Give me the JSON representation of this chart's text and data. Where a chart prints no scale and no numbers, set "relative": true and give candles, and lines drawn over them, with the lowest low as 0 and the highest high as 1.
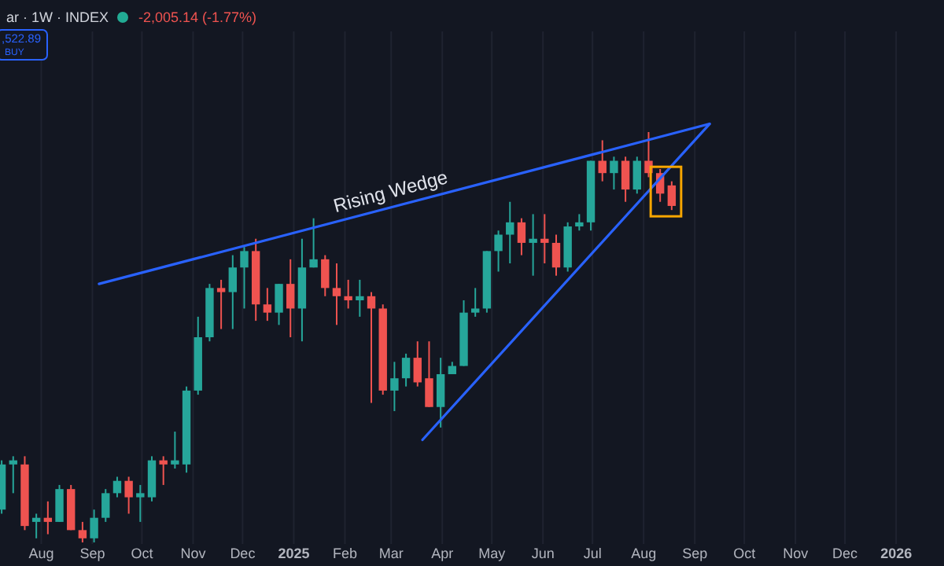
{
  "chart_data": {
    "type": "candlestick",
    "relative": true,
    "title": "ar · 1W · INDEX",
    "subtitle": "-2,005.14 (-1.77%)",
    "annotations": [
      ",522.89",
      "BUY",
      "Rising Wedge"
    ],
    "x": [
      "2024-07-08",
      "2024-07-15",
      "2024-07-22",
      "2024-07-29",
      "2024-08-05",
      "2024-08-12",
      "2024-08-19",
      "2024-08-26",
      "2024-09-02",
      "2024-09-09",
      "2024-09-16",
      "2024-09-23",
      "2024-09-30",
      "2024-10-07",
      "2024-10-14",
      "2024-10-21",
      "2024-10-28",
      "2024-11-04",
      "2024-11-11",
      "2024-11-18",
      "2024-11-25",
      "2024-12-02",
      "2024-12-09",
      "2024-12-16",
      "2024-12-23",
      "2024-12-30",
      "2025-01-06",
      "2025-01-13",
      "2025-01-20",
      "2025-01-27",
      "2025-02-03",
      "2025-02-10",
      "2025-02-17",
      "2025-02-24",
      "2025-03-03",
      "2025-03-10",
      "2025-03-17",
      "2025-03-24",
      "2025-03-31",
      "2025-04-07",
      "2025-04-14",
      "2025-04-21",
      "2025-04-28",
      "2025-05-05",
      "2025-05-12",
      "2025-05-19",
      "2025-05-26",
      "2025-06-02",
      "2025-06-09",
      "2025-06-16",
      "2025-06-23",
      "2025-06-30",
      "2025-07-07",
      "2025-07-14",
      "2025-07-21",
      "2025-07-28",
      "2025-08-04",
      "2025-08-11",
      "2025-08-18"
    ],
    "ohlc": [
      [
        0.08,
        0.2,
        0.07,
        0.19
      ],
      [
        0.19,
        0.21,
        0.12,
        0.2
      ],
      [
        0.19,
        0.21,
        0.03,
        0.04
      ],
      [
        0.05,
        0.07,
        0.01,
        0.06
      ],
      [
        0.06,
        0.1,
        0.02,
        0.05
      ],
      [
        0.05,
        0.14,
        0.05,
        0.13
      ],
      [
        0.13,
        0.14,
        0.03,
        0.03
      ],
      [
        0.03,
        0.05,
        0,
        0.01
      ],
      [
        0.01,
        0.08,
        0,
        0.06
      ],
      [
        0.06,
        0.13,
        0.05,
        0.12
      ],
      [
        0.12,
        0.16,
        0.11,
        0.15
      ],
      [
        0.15,
        0.16,
        0.07,
        0.11
      ],
      [
        0.11,
        0.14,
        0.05,
        0.12
      ],
      [
        0.11,
        0.21,
        0.1,
        0.2
      ],
      [
        0.2,
        0.21,
        0.14,
        0.19
      ],
      [
        0.19,
        0.27,
        0.18,
        0.2
      ],
      [
        0.19,
        0.38,
        0.17,
        0.37
      ],
      [
        0.37,
        0.55,
        0.36,
        0.5
      ],
      [
        0.5,
        0.63,
        0.49,
        0.62
      ],
      [
        0.62,
        0.64,
        0.52,
        0.61
      ],
      [
        0.61,
        0.7,
        0.52,
        0.67
      ],
      [
        0.67,
        0.72,
        0.57,
        0.71
      ],
      [
        0.71,
        0.74,
        0.54,
        0.58
      ],
      [
        0.58,
        0.62,
        0.54,
        0.56
      ],
      [
        0.56,
        0.63,
        0.53,
        0.63
      ],
      [
        0.63,
        0.69,
        0.5,
        0.57
      ],
      [
        0.57,
        0.74,
        0.49,
        0.67
      ],
      [
        0.67,
        0.79,
        0.67,
        0.69
      ],
      [
        0.69,
        0.7,
        0.6,
        0.62
      ],
      [
        0.62,
        0.68,
        0.53,
        0.6
      ],
      [
        0.6,
        0.64,
        0.57,
        0.59
      ],
      [
        0.59,
        0.64,
        0.55,
        0.6
      ],
      [
        0.6,
        0.61,
        0.34,
        0.57
      ],
      [
        0.57,
        0.58,
        0.36,
        0.37
      ],
      [
        0.37,
        0.44,
        0.32,
        0.4
      ],
      [
        0.4,
        0.46,
        0.38,
        0.45
      ],
      [
        0.45,
        0.49,
        0.38,
        0.39
      ],
      [
        0.4,
        0.49,
        0.33,
        0.33
      ],
      [
        0.33,
        0.45,
        0.28,
        0.41
      ],
      [
        0.41,
        0.44,
        0.41,
        0.43
      ],
      [
        0.43,
        0.59,
        0.43,
        0.56
      ],
      [
        0.56,
        0.62,
        0.55,
        0.57
      ],
      [
        0.57,
        0.71,
        0.56,
        0.71
      ],
      [
        0.71,
        0.76,
        0.66,
        0.75
      ],
      [
        0.75,
        0.83,
        0.68,
        0.78
      ],
      [
        0.78,
        0.79,
        0.7,
        0.73
      ],
      [
        0.73,
        0.8,
        0.65,
        0.74
      ],
      [
        0.74,
        0.8,
        0.68,
        0.73
      ],
      [
        0.73,
        0.75,
        0.65,
        0.67
      ],
      [
        0.67,
        0.78,
        0.66,
        0.77
      ],
      [
        0.77,
        0.8,
        0.76,
        0.78
      ],
      [
        0.78,
        0.93,
        0.76,
        0.93
      ],
      [
        0.93,
        0.98,
        0.88,
        0.9
      ],
      [
        0.9,
        0.94,
        0.86,
        0.93
      ],
      [
        0.93,
        0.94,
        0.83,
        0.86
      ],
      [
        0.86,
        0.94,
        0.85,
        0.93
      ],
      [
        0.93,
        1,
        0.89,
        0.9
      ],
      [
        0.9,
        0.91,
        0.83,
        0.85
      ],
      [
        0.87,
        0.88,
        0.81,
        0.82
      ]
    ],
    "colors": [
      "#26a69a",
      "#26a69a",
      "#ef5350",
      "#26a69a",
      "#ef5350",
      "#26a69a",
      "#ef5350",
      "#ef5350",
      "#26a69a",
      "#26a69a",
      "#26a69a",
      "#ef5350",
      "#26a69a",
      "#26a69a",
      "#ef5350",
      "#26a69a",
      "#26a69a",
      "#26a69a",
      "#26a69a",
      "#ef5350",
      "#26a69a",
      "#26a69a",
      "#ef5350",
      "#ef5350",
      "#26a69a",
      "#ef5350",
      "#26a69a",
      "#26a69a",
      "#ef5350",
      "#ef5350",
      "#ef5350",
      "#26a69a",
      "#ef5350",
      "#ef5350",
      "#26a69a",
      "#26a69a",
      "#ef5350",
      "#ef5350",
      "#26a69a",
      "#26a69a",
      "#26a69a",
      "#26a69a",
      "#26a69a",
      "#26a69a",
      "#26a69a",
      "#ef5350",
      "#26a69a",
      "#ef5350",
      "#ef5350",
      "#26a69a",
      "#26a69a",
      "#26a69a",
      "#ef5350",
      "#26a69a",
      "#ef5350",
      "#26a69a",
      "#ef5350",
      "#ef5350",
      "#ef5350"
    ],
    "series": [
      {
        "type": "line",
        "color": "#2962ff",
        "x": [
          "2024-09-05",
          "2025-09-10"
        ],
        "values": [
          0.63,
          1.02
        ]
      },
      {
        "type": "line",
        "color": "#2962ff",
        "x": [
          "2025-03-20",
          "2025-09-10"
        ],
        "values": [
          0.25,
          1.02
        ]
      }
    ],
    "xlim": [
      "2024-07-07",
      "2026-01-30"
    ],
    "xticks": [
      {
        "value": "2024-08-01",
        "label": "Aug"
      },
      {
        "value": "2024-09-01",
        "label": "Sep"
      },
      {
        "value": "2024-10-01",
        "label": "Oct"
      },
      {
        "value": "2024-11-01",
        "label": "Nov"
      },
      {
        "value": "2024-12-01",
        "label": "Dec"
      },
      {
        "value": "2025-01-01",
        "label": "2025"
      },
      {
        "value": "2025-02-01",
        "label": "Feb"
      },
      {
        "value": "2025-03-01",
        "label": "Mar"
      },
      {
        "value": "2025-04-01",
        "label": "Apr"
      },
      {
        "value": "2025-05-01",
        "label": "May"
      },
      {
        "value": "2025-06-01",
        "label": "Jun"
      },
      {
        "value": "2025-07-01",
        "label": "Jul"
      },
      {
        "value": "2025-08-01",
        "label": "Aug"
      },
      {
        "value": "2025-09-01",
        "label": "Sep"
      },
      {
        "value": "2025-10-01",
        "label": "Oct"
      },
      {
        "value": "2025-11-01",
        "label": "Nov"
      },
      {
        "value": "2025-12-01",
        "label": "Dec"
      },
      {
        "value": "2026-01-01",
        "label": "2026"
      }
    ],
    "grid": "x",
    "tick_labels": "x"
  }
}
